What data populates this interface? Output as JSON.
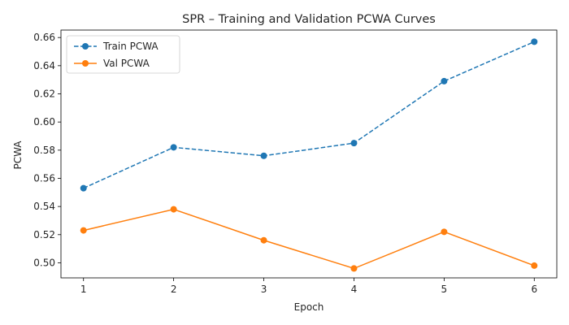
{
  "chart_data": {
    "type": "line",
    "title": "SPR – Training and Validation PCWA Curves",
    "xlabel": "Epoch",
    "ylabel": "PCWA",
    "x": [
      1,
      2,
      3,
      4,
      5,
      6
    ],
    "xticks": [
      "1",
      "2",
      "3",
      "4",
      "5",
      "6"
    ],
    "xlim": [
      0.75,
      6.25
    ],
    "ylim": [
      0.4893,
      0.6653
    ],
    "yticks": [
      0.5,
      0.52,
      0.54,
      0.56,
      0.58,
      0.6,
      0.62,
      0.64,
      0.66
    ],
    "ytick_labels": [
      "0.50",
      "0.52",
      "0.54",
      "0.56",
      "0.58",
      "0.60",
      "0.62",
      "0.64",
      "0.66"
    ],
    "grid": false,
    "legend": "top-left",
    "series": [
      {
        "name": "Train PCWA",
        "color": "#1f77b4",
        "linestyle": "dashed",
        "marker": "circle",
        "values": [
          0.553,
          0.582,
          0.576,
          0.585,
          0.629,
          0.657
        ]
      },
      {
        "name": "Val PCWA",
        "color": "#ff7f0e",
        "linestyle": "solid",
        "marker": "circle",
        "values": [
          0.523,
          0.538,
          0.516,
          0.496,
          0.522,
          0.498
        ]
      }
    ]
  }
}
